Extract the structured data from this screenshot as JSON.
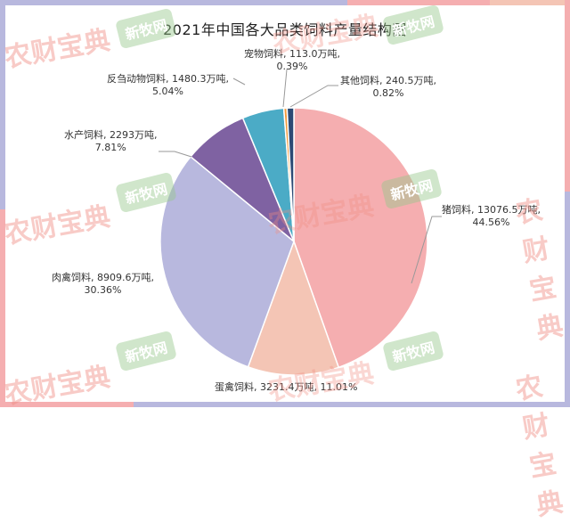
{
  "chart_data": {
    "type": "pie",
    "title": "2021年中国各大品类饲料产量结构图",
    "unit": "万吨",
    "slices": [
      {
        "name": "猪饲料",
        "value": 13076.5,
        "percent": 44.56,
        "color": "#F5AEB0",
        "label": "猪饲料, 13076.5万吨,",
        "pct_label": "44.56%"
      },
      {
        "name": "蛋禽饲料",
        "value": 3231.4,
        "percent": 11.01,
        "color": "#F4C5B5",
        "label": "蛋禽饲料, 3231.4万吨, 11.01%",
        "pct_label": ""
      },
      {
        "name": "肉禽饲料",
        "value": 8909.6,
        "percent": 30.36,
        "color": "#B8B8DE",
        "label": "肉禽饲料, 8909.6万吨,",
        "pct_label": "30.36%"
      },
      {
        "name": "水产饲料",
        "value": 2293,
        "percent": 7.81,
        "color": "#7F62A2",
        "label": "水产饲料, 2293万吨,",
        "pct_label": "7.81%"
      },
      {
        "name": "反刍动物饲料",
        "value": 1480.3,
        "percent": 5.04,
        "color": "#4BABC6",
        "label": "反刍动物饲料, 1480.3万吨,",
        "pct_label": "5.04%"
      },
      {
        "name": "宠物饲料",
        "value": 113.0,
        "percent": 0.39,
        "color": "#F39A3C",
        "label": "宠物饲料, 113.0万吨,",
        "pct_label": "0.39%"
      },
      {
        "name": "其他饲料",
        "value": 240.5,
        "percent": 0.82,
        "color": "#2C4A74",
        "label": "其他饲料, 240.5万吨,",
        "pct_label": "0.82%"
      }
    ],
    "legend": "none (data labels with leader lines)"
  },
  "watermarks": {
    "brand_a": "农财宝典",
    "brand_b": "新牧网"
  },
  "colors": {
    "border_lavender": "#B8B8DE",
    "border_pink": "#F5AEB0",
    "border_peach": "#F4C5B5"
  }
}
